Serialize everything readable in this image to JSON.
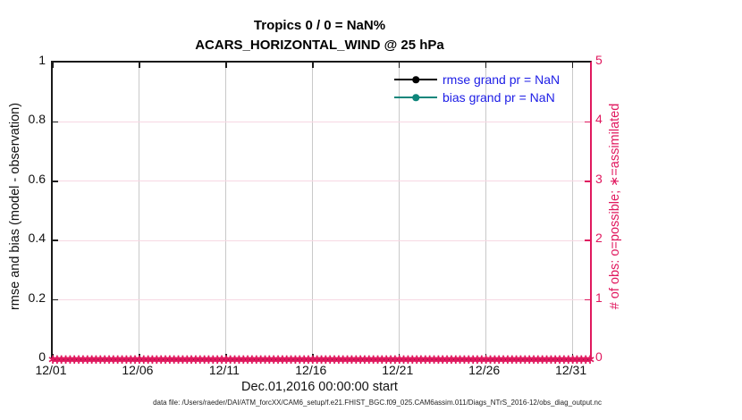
{
  "figure": {
    "footer": "data file: /Users/raeder/DAI/ATM_forcXX/CAM6_setup/f.e21.FHIST_BGC.f09_025.CAM6assim.011/Diags_NTrS_2016-12/obs_diag_output.nc"
  },
  "colors": {
    "accent_pink": "#e0185e",
    "teal": "#0f867b",
    "legend_text_blue": "#1c1ce6",
    "grid_vertical": "#c9c9c9",
    "grid_horizontal": "#f7d8e3",
    "axis_dark": "#1a1a1a"
  },
  "chart_data": {
    "type": "line",
    "title": "Tropics 0 / 0 = NaN%",
    "subtitle": "ACARS_HORIZONTAL_WIND @ 25 hPa",
    "xlabel": "Dec.01,2016 00:00:00 start",
    "ylabel_left": "rmse and bias (model - observation)",
    "ylabel_right": "# of obs: o=possible; ∗=assimilated",
    "x_ticks": [
      "12/01",
      "12/06",
      "12/11",
      "12/16",
      "12/21",
      "12/26",
      "12/31"
    ],
    "x_tick_days": [
      0,
      5,
      10,
      15,
      20,
      25,
      30
    ],
    "x_range_days": [
      0,
      31
    ],
    "y_left": {
      "label_ticks": [
        "0",
        "0.2",
        "0.4",
        "0.6",
        "0.8",
        "1"
      ],
      "tick_values": [
        0,
        0.2,
        0.4,
        0.6,
        0.8,
        1
      ],
      "lim": [
        0,
        1
      ]
    },
    "y_right": {
      "label_ticks": [
        "0",
        "1",
        "2",
        "3",
        "4",
        "5"
      ],
      "tick_values": [
        0,
        1,
        2,
        3,
        4,
        5
      ],
      "lim": [
        0,
        5
      ]
    },
    "grid": {
      "vertical": true,
      "horizontal": true,
      "legend_position": "top-right-inside"
    },
    "series": [
      {
        "name": "rmse",
        "legend": "rmse grand pr = NaN",
        "value": "NaN",
        "color": "#000000",
        "marker": "filled-circle",
        "points": []
      },
      {
        "name": "bias",
        "legend": "bias grand pr = NaN",
        "value": "NaN",
        "color": "#0f867b",
        "marker": "filled-circle",
        "points": []
      },
      {
        "name": "obs-count",
        "axis": "right",
        "color": "#e0185e",
        "marker": "∗",
        "y_value": 0,
        "n_points": 125,
        "x_span_days": [
          0,
          31
        ]
      }
    ]
  }
}
